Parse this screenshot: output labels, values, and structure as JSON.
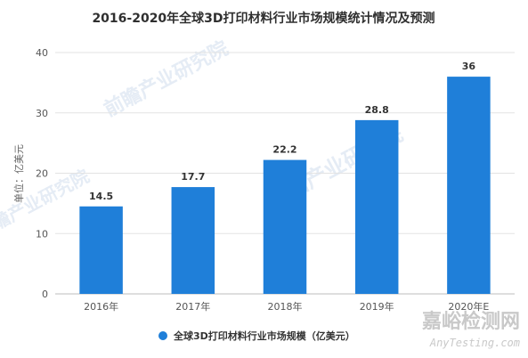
{
  "chart_data": {
    "type": "bar",
    "title": "2016-2020年全球3D打印材料行业市场规模统计情况及预测",
    "ylabel": "单位：亿美元",
    "xlabel": "",
    "categories": [
      "2016年",
      "2017年",
      "2018年",
      "2019年",
      "2020年E"
    ],
    "series": [
      {
        "name": "全球3D打印材料行业市场规模（亿美元）",
        "values": [
          14.5,
          17.7,
          22.2,
          28.8,
          36
        ]
      }
    ],
    "data_labels": [
      "14.5",
      "17.7",
      "22.2",
      "28.8",
      "36"
    ],
    "ylim": [
      0,
      40
    ],
    "yticks": [
      "0",
      "10",
      "20",
      "30",
      "40"
    ],
    "grid": true,
    "legend_position": "bottom",
    "bar_color": "#1f7fd9",
    "watermarks": [
      "前瞻产业研究院",
      "前瞻产业研究院",
      "前瞻产业研究院"
    ]
  },
  "branding": {
    "name": "嘉峪检测网",
    "url": "AnyTesting.com"
  }
}
